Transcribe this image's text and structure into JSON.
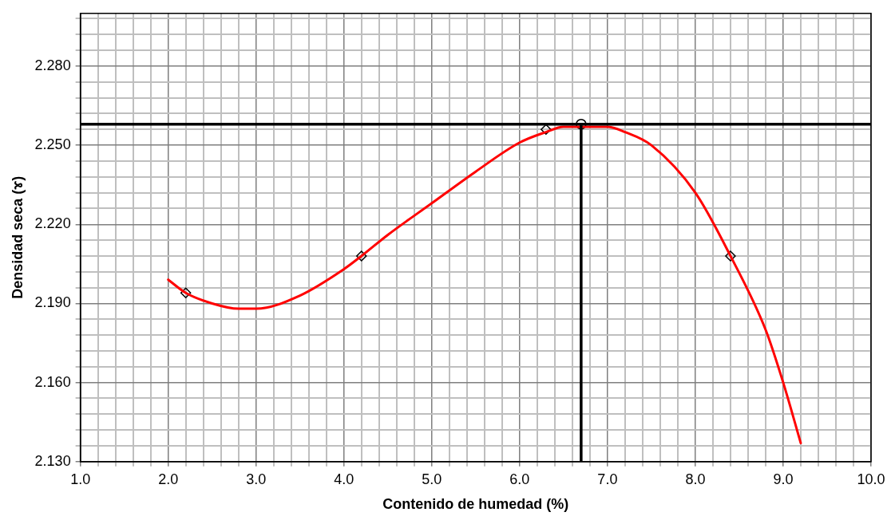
{
  "chart_data": {
    "type": "scatter",
    "xlabel": "Contenido de humedad (%)",
    "ylabel": "Densidad seca (ɤ)",
    "xlim": [
      1.0,
      10.0
    ],
    "xticks": [
      {
        "value": 1,
        "label": "1.0"
      },
      {
        "value": 1.2,
        "label": null
      },
      {
        "value": 1.4,
        "label": null
      },
      {
        "value": 1.6,
        "label": null
      },
      {
        "value": 1.8,
        "label": null
      },
      {
        "value": 2,
        "label": "2.0"
      },
      {
        "value": 2.2,
        "label": null
      },
      {
        "value": 2.4,
        "label": null
      },
      {
        "value": 2.6,
        "label": null
      },
      {
        "value": 2.8,
        "label": null
      },
      {
        "value": 3,
        "label": "3.0"
      },
      {
        "value": 3.2,
        "label": null
      },
      {
        "value": 3.4,
        "label": null
      },
      {
        "value": 3.6,
        "label": null
      },
      {
        "value": 3.8,
        "label": null
      },
      {
        "value": 4,
        "label": "4.0"
      },
      {
        "value": 4.2,
        "label": null
      },
      {
        "value": 4.4,
        "label": null
      },
      {
        "value": 4.6,
        "label": null
      },
      {
        "value": 4.8,
        "label": null
      },
      {
        "value": 5,
        "label": "5.0"
      },
      {
        "value": 5.2,
        "label": null
      },
      {
        "value": 5.4,
        "label": null
      },
      {
        "value": 5.6,
        "label": null
      },
      {
        "value": 5.8,
        "label": null
      },
      {
        "value": 6,
        "label": "6.0"
      },
      {
        "value": 6.2,
        "label": null
      },
      {
        "value": 6.4,
        "label": null
      },
      {
        "value": 6.6,
        "label": null
      },
      {
        "value": 6.8,
        "label": null
      },
      {
        "value": 7,
        "label": "7.0"
      },
      {
        "value": 7.2,
        "label": null
      },
      {
        "value": 7.4,
        "label": null
      },
      {
        "value": 7.6,
        "label": null
      },
      {
        "value": 7.8,
        "label": null
      },
      {
        "value": 8,
        "label": "8.0"
      },
      {
        "value": 8.2,
        "label": null
      },
      {
        "value": 8.4,
        "label": null
      },
      {
        "value": 8.6,
        "label": null
      },
      {
        "value": 8.8,
        "label": null
      },
      {
        "value": 9,
        "label": "9.0"
      },
      {
        "value": 9.2,
        "label": null
      },
      {
        "value": 9.4,
        "label": null
      },
      {
        "value": 9.6,
        "label": null
      },
      {
        "value": 9.8,
        "label": null
      },
      {
        "value": 10,
        "label": "10.0"
      }
    ],
    "ylim": [
      2.13,
      2.3
    ],
    "yticks": [
      {
        "value": 2.13,
        "label": "2.130"
      },
      {
        "value": 2.136,
        "label": null
      },
      {
        "value": 2.142,
        "label": null
      },
      {
        "value": 2.148,
        "label": null
      },
      {
        "value": 2.154,
        "label": null
      },
      {
        "value": 2.16,
        "label": "2.160"
      },
      {
        "value": 2.166,
        "label": null
      },
      {
        "value": 2.172,
        "label": null
      },
      {
        "value": 2.178,
        "label": null
      },
      {
        "value": 2.184,
        "label": null
      },
      {
        "value": 2.19,
        "label": "2.190"
      },
      {
        "value": 2.196,
        "label": null
      },
      {
        "value": 2.202,
        "label": null
      },
      {
        "value": 2.208,
        "label": null
      },
      {
        "value": 2.214,
        "label": null
      },
      {
        "value": 2.22,
        "label": "2.220"
      },
      {
        "value": 2.226,
        "label": null
      },
      {
        "value": 2.232,
        "label": null
      },
      {
        "value": 2.238,
        "label": null
      },
      {
        "value": 2.244,
        "label": null
      },
      {
        "value": 2.25,
        "label": "2.250"
      },
      {
        "value": 2.256,
        "label": null
      },
      {
        "value": 2.262,
        "label": null
      },
      {
        "value": 2.268,
        "label": null
      },
      {
        "value": 2.274,
        "label": null
      },
      {
        "value": 2.28,
        "label": "2.280"
      },
      {
        "value": 2.286,
        "label": null
      },
      {
        "value": 2.292,
        "label": null
      },
      {
        "value": 2.298,
        "label": null
      }
    ],
    "grid": true,
    "legend": false,
    "series": [
      {
        "type": "line",
        "color": "#ff0000",
        "marker": "none",
        "line_style": "solid",
        "x": [
          2.0,
          2.2,
          2.5,
          2.8,
          3.0,
          3.5,
          4.0,
          4.2,
          4.5,
          5.0,
          5.5,
          6.0,
          6.3,
          6.5,
          7.0,
          7.2,
          7.5,
          8.0,
          8.4,
          8.8,
          9.0,
          9.2
        ],
        "values": [
          2.199,
          2.194,
          2.19,
          2.188,
          2.188,
          2.193,
          2.203,
          2.208,
          2.216,
          2.228,
          2.24,
          2.251,
          2.255,
          2.257,
          2.257,
          2.255,
          2.25,
          2.232,
          2.208,
          2.18,
          2.16,
          2.137
        ]
      },
      {
        "type": "scatter",
        "color": "#000000",
        "marker": "diamond",
        "x": [
          2.2,
          4.2,
          6.3,
          8.4
        ],
        "values": [
          2.194,
          2.208,
          2.256,
          2.208
        ]
      },
      {
        "type": "scatter",
        "color": "#000000",
        "marker": "circle",
        "x": [
          6.7
        ],
        "values": [
          2.258
        ]
      }
    ],
    "ref_lines": [
      {
        "axis": "y",
        "value": 2.258,
        "color": "#000000"
      },
      {
        "axis": "x",
        "value": 6.7,
        "color": "#000000"
      }
    ]
  }
}
